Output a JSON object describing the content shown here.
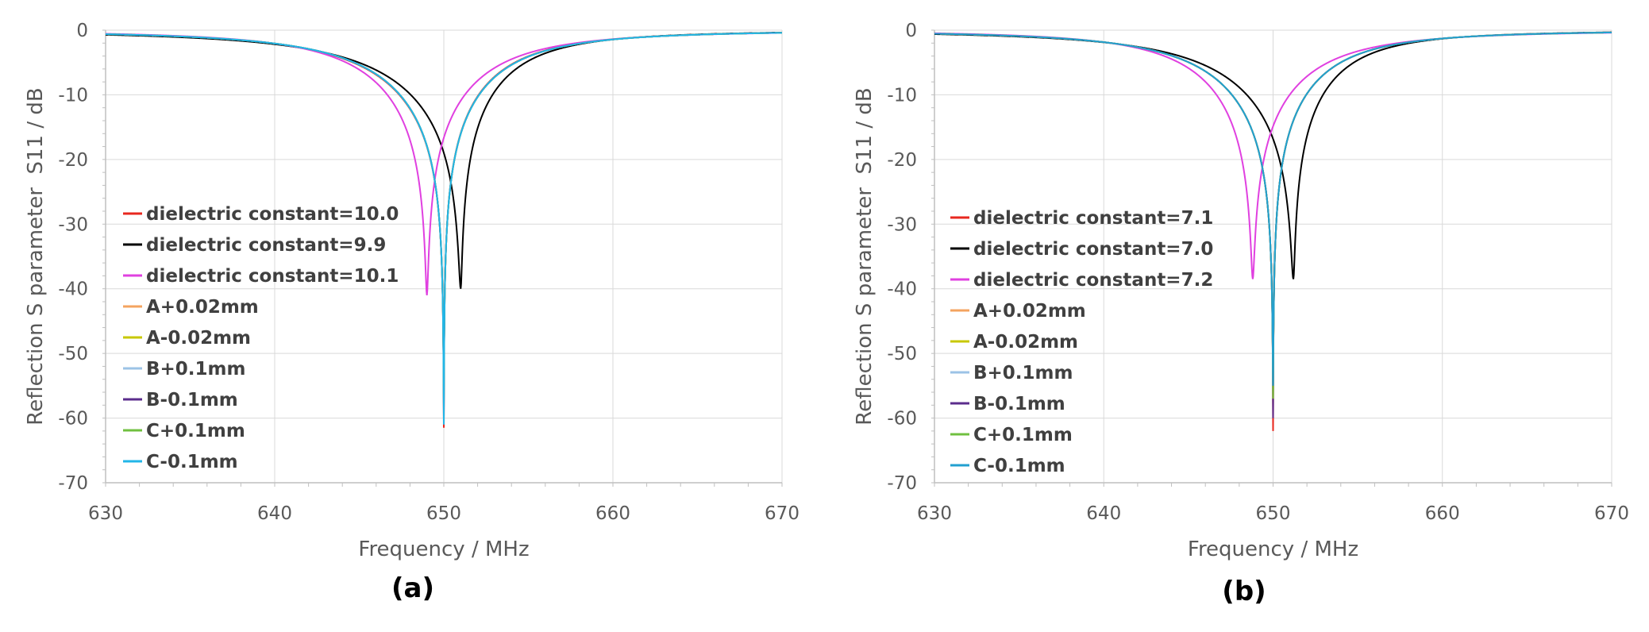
{
  "chart_data": [
    {
      "type": "line",
      "panel_label": "(a)",
      "xlabel": "Frequency / MHz",
      "ylabel": "Reflection S parameter  S11 / dB",
      "xlim": [
        630,
        670
      ],
      "ylim": [
        -70,
        0
      ],
      "x_ticks": [
        "630",
        "640",
        "650",
        "660",
        "670"
      ],
      "y_ticks": [
        "0",
        "-10",
        "-20",
        "-30",
        "-40",
        "-50",
        "-60",
        "-70"
      ],
      "grid": true,
      "legend_position": "left",
      "series": [
        {
          "name": "dielectric constant=10.0",
          "color": "#e8281f",
          "f0": 650.0,
          "depth": -61.5,
          "edge_left": -8.7,
          "edge_right": -10.6
        },
        {
          "name": "dielectric constant=9.9",
          "color": "#000000",
          "f0": 651.0,
          "depth": -40.0,
          "edge_left": -8.2,
          "edge_right": -10.9
        },
        {
          "name": "dielectric constant=10.1",
          "color": "#e040e0",
          "f0": 649.0,
          "depth": -41.0,
          "edge_left": -9.2,
          "edge_right": -10.3
        },
        {
          "name": "A+0.02mm",
          "color": "#f4a460",
          "f0": 650.0,
          "depth": -55.0,
          "edge_left": -8.8,
          "edge_right": -10.5
        },
        {
          "name": "A-0.02mm",
          "color": "#c8c800",
          "f0": 650.0,
          "depth": -57.0,
          "edge_left": -8.8,
          "edge_right": -10.5
        },
        {
          "name": "B+0.1mm",
          "color": "#9cc3e6",
          "f0": 650.0,
          "depth": -58.0,
          "edge_left": -8.8,
          "edge_right": -10.5
        },
        {
          "name": "B-0.1mm",
          "color": "#5b2c8c",
          "f0": 650.0,
          "depth": -60.0,
          "edge_left": -8.8,
          "edge_right": -10.5
        },
        {
          "name": "C+0.1mm",
          "color": "#70c040",
          "f0": 650.0,
          "depth": -58.0,
          "edge_left": -8.8,
          "edge_right": -10.5
        },
        {
          "name": "C-0.1mm",
          "color": "#22b6e8",
          "f0": 650.0,
          "depth": -61.0,
          "edge_left": -8.8,
          "edge_right": -10.5
        }
      ]
    },
    {
      "type": "line",
      "panel_label": "(b)",
      "xlabel": "Frequency / MHz",
      "ylabel": "Reflection S parameter  S11 / dB",
      "xlim": [
        630,
        670
      ],
      "ylim": [
        -70,
        0
      ],
      "x_ticks": [
        "630",
        "640",
        "650",
        "660",
        "670"
      ],
      "y_ticks": [
        "0",
        "-10",
        "-20",
        "-30",
        "-40",
        "-50",
        "-60",
        "-70"
      ],
      "grid": true,
      "legend_position": "left",
      "series": [
        {
          "name": "dielectric constant=7.1",
          "color": "#e8281f",
          "f0": 650.0,
          "depth": -62.0,
          "edge_left": -9.3,
          "edge_right": -11.0
        },
        {
          "name": "dielectric constant=7.0",
          "color": "#000000",
          "f0": 651.2,
          "depth": -38.5,
          "edge_left": -8.8,
          "edge_right": -11.4
        },
        {
          "name": "dielectric constant=7.2",
          "color": "#e040e0",
          "f0": 648.8,
          "depth": -38.5,
          "edge_left": -9.8,
          "edge_right": -10.6
        },
        {
          "name": "A+0.02mm",
          "color": "#f4a460",
          "f0": 650.0,
          "depth": -57.0,
          "edge_left": -9.3,
          "edge_right": -11.0
        },
        {
          "name": "A-0.02mm",
          "color": "#c8c800",
          "f0": 650.0,
          "depth": -58.0,
          "edge_left": -9.3,
          "edge_right": -11.0
        },
        {
          "name": "B+0.1mm",
          "color": "#9cc3e6",
          "f0": 650.0,
          "depth": -55.0,
          "edge_left": -9.3,
          "edge_right": -11.0
        },
        {
          "name": "B-0.1mm",
          "color": "#5b2c8c",
          "f0": 650.0,
          "depth": -60.0,
          "edge_left": -9.3,
          "edge_right": -11.0
        },
        {
          "name": "C+0.1mm",
          "color": "#70c040",
          "f0": 650.0,
          "depth": -57.0,
          "edge_left": -9.3,
          "edge_right": -11.0
        },
        {
          "name": "C-0.1mm",
          "color": "#22a0d0",
          "f0": 650.0,
          "depth": -55.0,
          "edge_left": -9.3,
          "edge_right": -11.0
        }
      ]
    }
  ]
}
